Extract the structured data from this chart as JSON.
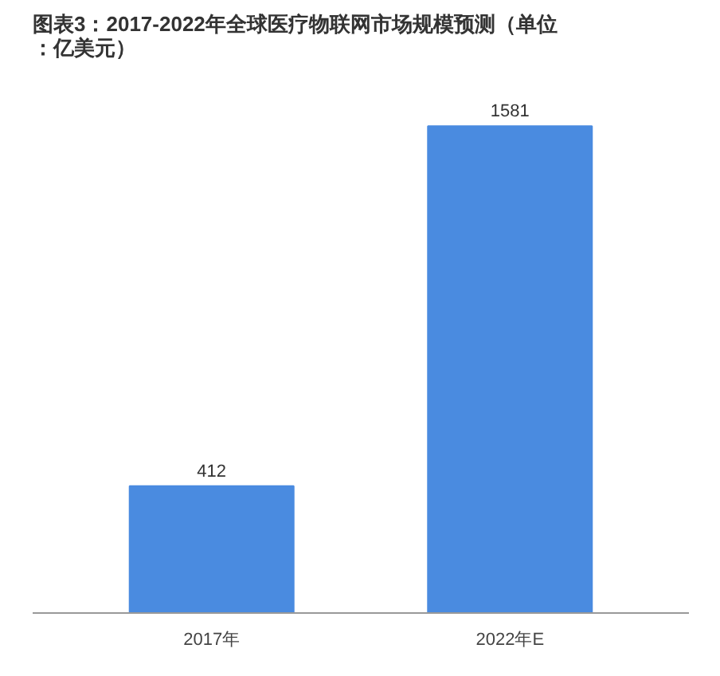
{
  "chart_data": {
    "type": "bar",
    "title": "图表3：2017-2022年全球医疗物联网市场规模预测（单位：亿美元）",
    "categories": [
      "2017年",
      "2022年E"
    ],
    "values": [
      412,
      1581
    ],
    "color": "#4a8be0",
    "data_labels": true,
    "grid": false
  }
}
